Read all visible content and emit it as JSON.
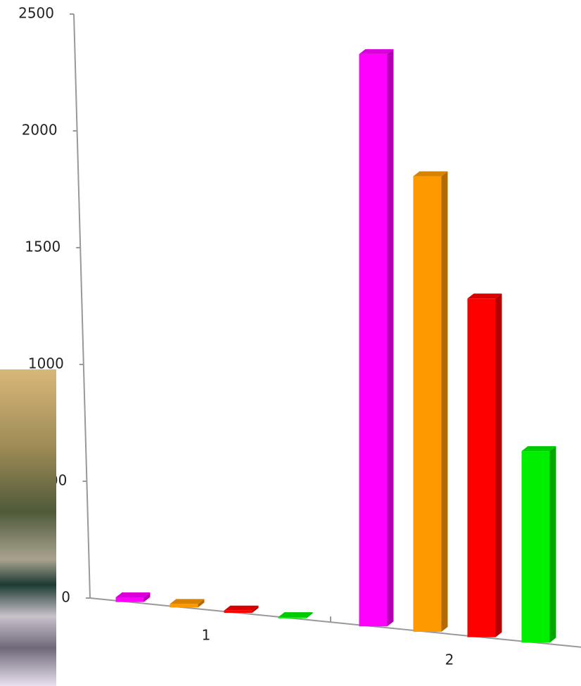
{
  "chart_data": {
    "type": "bar3d",
    "categories": [
      "1",
      "2"
    ],
    "series": [
      {
        "color": "#ff00ff",
        "values": [
          20,
          2450
        ]
      },
      {
        "color": "#ff9900",
        "values": [
          15,
          1950
        ]
      },
      {
        "color": "#ff0000",
        "values": [
          10,
          1450
        ]
      },
      {
        "color": "#00ee00",
        "values": [
          5,
          820
        ]
      }
    ],
    "ylim": [
      0,
      2500
    ],
    "yticks": [
      0,
      500,
      1000,
      1500,
      2000,
      2500
    ]
  }
}
